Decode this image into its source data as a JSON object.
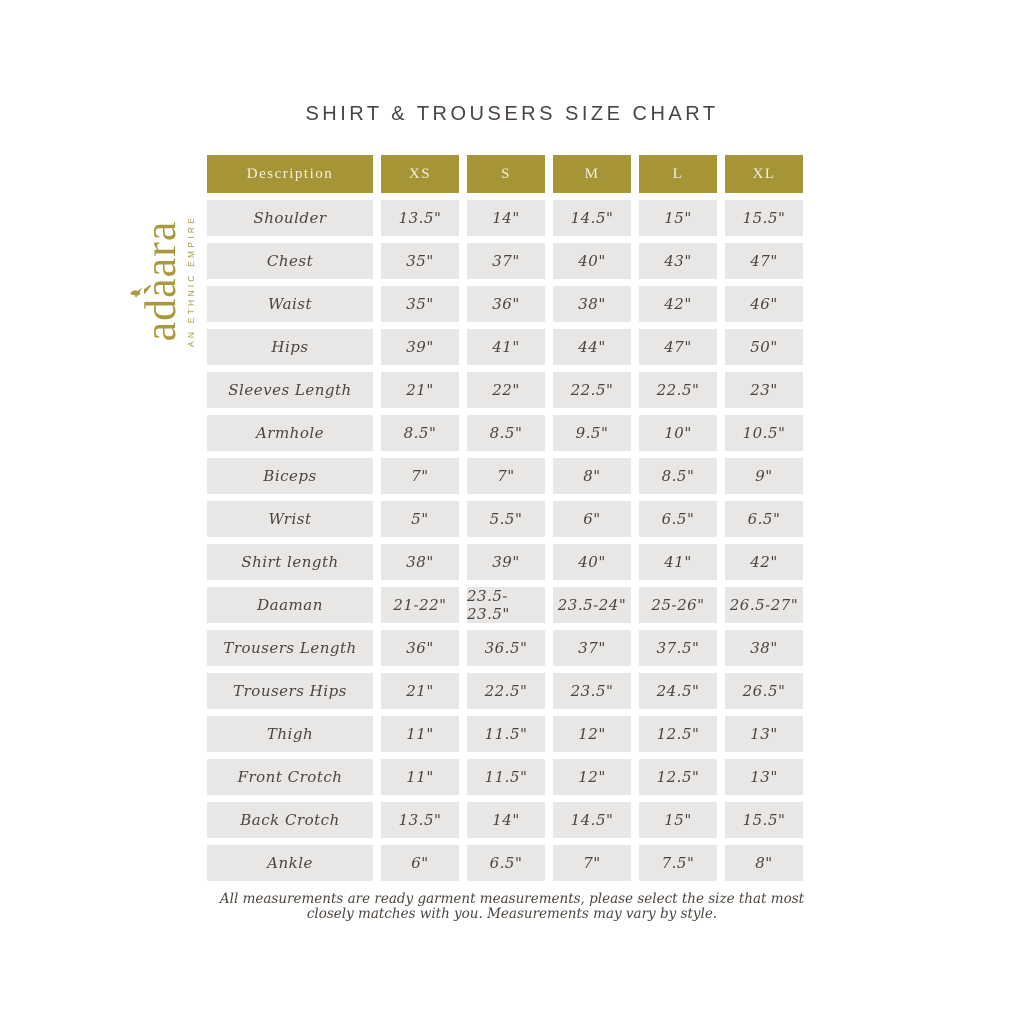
{
  "title": "SHIRT & TROUSERS SIZE CHART",
  "logo": {
    "name": "adàara",
    "tagline": "AN ETHNIC EMPIRE",
    "color": "#ab993c"
  },
  "colors": {
    "header_bg": "#a69537",
    "header_text": "#f6f1dd",
    "cell_bg": "#e8e7e5",
    "cell_text": "#4b443e",
    "title_text": "#4a4440"
  },
  "chart_data": {
    "type": "table",
    "title": "SHIRT & TROUSERS SIZE CHART",
    "columns": [
      "Description",
      "XS",
      "S",
      "M",
      "L",
      "XL"
    ],
    "rows": [
      {
        "label": "Shoulder",
        "values": [
          "13.5\"",
          "14\"",
          "14.5\"",
          "15\"",
          "15.5\""
        ]
      },
      {
        "label": "Chest",
        "values": [
          "35\"",
          "37\"",
          "40\"",
          "43\"",
          "47\""
        ]
      },
      {
        "label": "Waist",
        "values": [
          "35\"",
          "36\"",
          "38\"",
          "42\"",
          "46\""
        ]
      },
      {
        "label": "Hips",
        "values": [
          "39\"",
          "41\"",
          "44\"",
          "47\"",
          "50\""
        ]
      },
      {
        "label": "Sleeves Length",
        "values": [
          "21\"",
          "22\"",
          "22.5\"",
          "22.5\"",
          "23\""
        ]
      },
      {
        "label": "Armhole",
        "values": [
          "8.5\"",
          "8.5\"",
          "9.5\"",
          "10\"",
          "10.5\""
        ]
      },
      {
        "label": "Biceps",
        "values": [
          "7\"",
          "7\"",
          "8\"",
          "8.5\"",
          "9\""
        ]
      },
      {
        "label": "Wrist",
        "values": [
          "5\"",
          "5.5\"",
          "6\"",
          "6.5\"",
          "6.5\""
        ]
      },
      {
        "label": "Shirt length",
        "values": [
          "38\"",
          "39\"",
          "40\"",
          "41\"",
          "42\""
        ]
      },
      {
        "label": "Daaman",
        "values": [
          "21-22\"",
          "23.5-23.5\"",
          "23.5-24\"",
          "25-26\"",
          "26.5-27\""
        ]
      },
      {
        "label": "Trousers Length",
        "values": [
          "36\"",
          "36.5\"",
          "37\"",
          "37.5\"",
          "38\""
        ]
      },
      {
        "label": "Trousers Hips",
        "values": [
          "21\"",
          "22.5\"",
          "23.5\"",
          "24.5\"",
          "26.5\""
        ]
      },
      {
        "label": "Thigh",
        "values": [
          "11\"",
          "11.5\"",
          "12\"",
          "12.5\"",
          "13\""
        ]
      },
      {
        "label": "Front Crotch",
        "values": [
          "11\"",
          "11.5\"",
          "12\"",
          "12.5\"",
          "13\""
        ]
      },
      {
        "label": "Back Crotch",
        "values": [
          "13.5\"",
          "14\"",
          "14.5\"",
          "15\"",
          "15.5\""
        ]
      },
      {
        "label": "Ankle",
        "values": [
          "6\"",
          "6.5\"",
          "7\"",
          "7.5\"",
          "8\""
        ]
      }
    ]
  },
  "note": {
    "line1": "All measurements are ready garment measurements, please select the size that most",
    "line2": "closely matches with you. Measurements may vary by style."
  }
}
